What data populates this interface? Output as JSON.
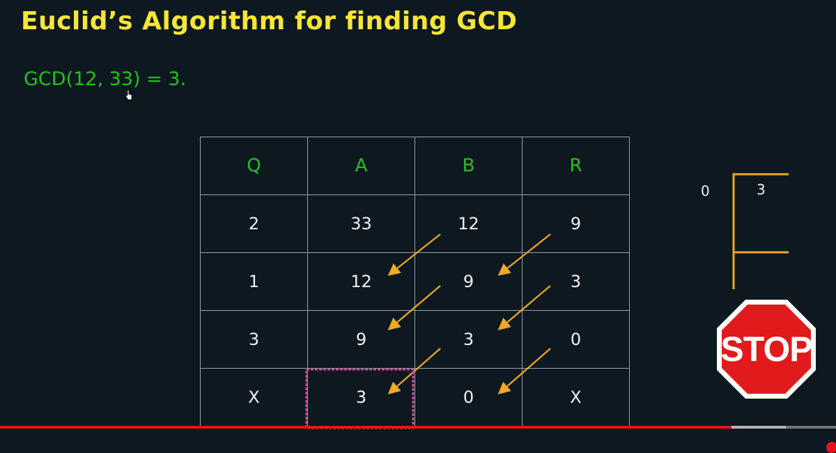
{
  "title": "Euclid’s Algorithm for finding GCD",
  "result": "GCD(12, 33) = 3.",
  "table": {
    "headers": [
      "Q",
      "A",
      "B",
      "R"
    ],
    "rows": [
      [
        "2",
        "33",
        "12",
        "9"
      ],
      [
        "1",
        "12",
        "9",
        "3"
      ],
      [
        "3",
        "9",
        "3",
        "0"
      ],
      [
        "X",
        "3",
        "0",
        "X"
      ]
    ]
  },
  "side_division": {
    "quotient": "0",
    "divisor": "3"
  },
  "stop_sign": {
    "text": "STOP",
    "color": "#e11b1b"
  },
  "colors": {
    "title": "#f6e53a",
    "result": "#22c21e",
    "arrows": "#f0a826",
    "bracket": "#f0a826"
  },
  "video_progress": {
    "played_fraction": 0.875,
    "buffered_fraction": 0.94
  }
}
